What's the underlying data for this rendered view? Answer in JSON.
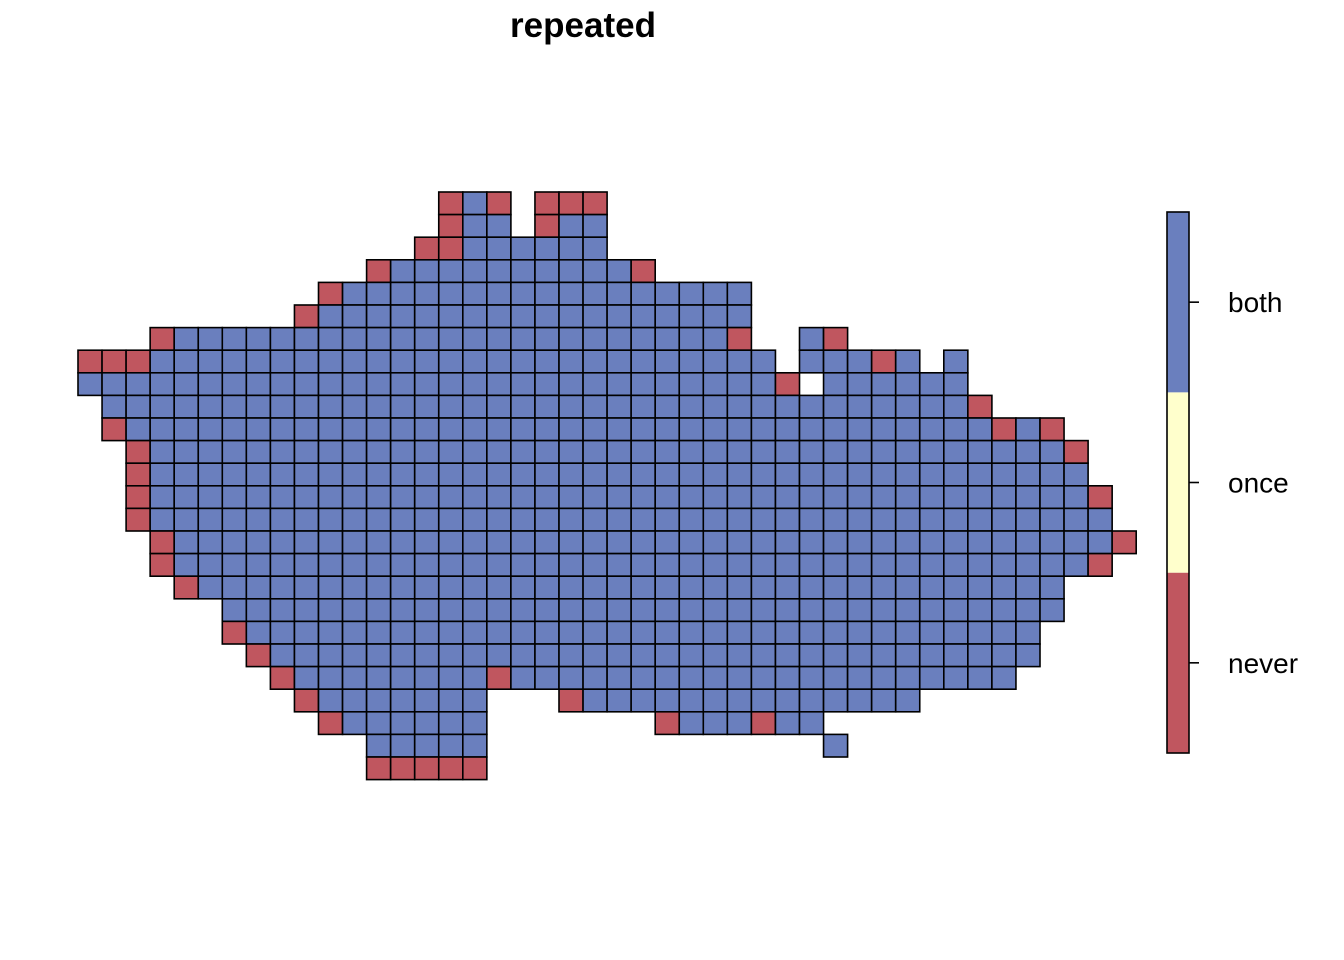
{
  "chart_data": {
    "type": "heatmap",
    "title": "repeated",
    "grid": false,
    "legend_placement": "right",
    "categories": [
      {
        "key": "N",
        "label": "never",
        "color": "#c0565f"
      },
      {
        "key": "O",
        "label": "once",
        "color": "#ffffcc"
      },
      {
        "key": "B",
        "label": "both",
        "color": "#6a7fbe"
      }
    ],
    "cells": [
      "...............NBN.NNN......................",
      "...............NBB.NBB......................",
      "..............NNBBBBBB......................",
      "............NBBBBBBBBBBN....................",
      "..........NBBBBBBBBBBBBBBBBB................",
      ".........NBBBBBBBBBBBBBBBBBB................",
      "...NBBBBBBBBBBBBBBBBBBBBBBBN..BN............",
      "NNNBBBBBBBBBBBBBBBBBBBBBBBBBB.BBBNB.B.......",
      "BBBBBBBBBBBBBBBBBBBBBBBBBBBBBN.BBBBBB.......",
      ".BBBBBBBBBBBBBBBBBBBBBBBBBBBBBBBBBBBBN......",
      ".NBBBBBBBBBBBBBBBBBBBBBBBBBBBBBBBBBBBBNBN...",
      "..NBBBBBBBBBBBBBBBBBBBBBBBBBBBBBBBBBBBBBBN..",
      "..NBBBBBBBBBBBBBBBBBBBBBBBBBBBBBBBBBBBBBBB..",
      "..NBBBBBBBBBBBBBBBBBBBBBBBBBBBBBBBBBBBBBBBN.",
      "..NBBBBBBBBBBBBBBBBBBBBBBBBBBBBBBBBBBBBBBBB.",
      "...NBBBBBBBBBBBBBBBBBBBBBBBBBBBBBBBBBBBBBBBN",
      "...NBBBBBBBBBBBBBBBBBBBBBBBBBBBBBBBBBBBBBBN.",
      "....NBBBBBBBBBBBBBBBBBBBBBBBBBBBBBBBBBBBB...",
      "......BBBBBBBBBBBBBBBBBBBBBBBBBBBBBBBBBBB...",
      "......NBBBBBBBBBBBBBBBBBBBBBBBBBBBBBBBBB....",
      ".......NBBBBBBBBBBBBBBBBBBBBBBBBBBBBBBBB....",
      "........NBBBBBBBBNBBBBBBBBBBBBBBBBBBBBB.....",
      ".........NBBBBBBB...NBBBBBBBBBBBBBB.........",
      "..........NBBBBBB.......NBBBNBB.............",
      "............BBBBB..............B............",
      "............NNNNN..........................."
    ],
    "legend_entries": [
      "never",
      "once",
      "both"
    ]
  }
}
